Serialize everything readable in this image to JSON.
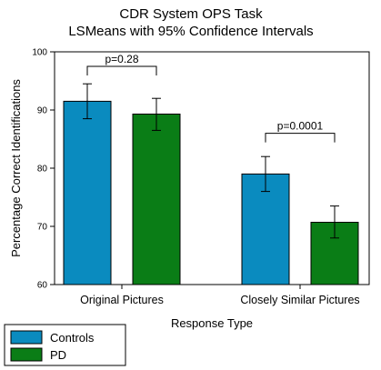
{
  "chart_data": {
    "type": "bar",
    "title": [
      "CDR System OPS Task",
      "LSMeans with 95% Confidence Intervals"
    ],
    "xlabel": "Response Type",
    "ylabel": "Percentage Correct Identifications",
    "ylim": [
      60,
      100
    ],
    "yticks": [
      60,
      70,
      80,
      90,
      100
    ],
    "categories": [
      "Original Pictures",
      "Closely Similar Pictures"
    ],
    "series": [
      {
        "name": "Controls",
        "color": "#0a8bbf",
        "values": [
          91.5,
          79.0
        ],
        "ci_low": [
          88.5,
          76.0
        ],
        "ci_high": [
          94.5,
          82.0
        ]
      },
      {
        "name": "PD",
        "color": "#0a7d16",
        "values": [
          89.3,
          70.7
        ],
        "ci_low": [
          86.5,
          68.0
        ],
        "ci_high": [
          92.0,
          73.5
        ]
      }
    ],
    "annotations": [
      {
        "category": "Original Pictures",
        "text": "p=0.28",
        "y": 97.5
      },
      {
        "category": "Closely Similar Pictures",
        "text": "p=0.0001",
        "y": 86.0
      }
    ],
    "grid": false,
    "legend_position": "bottom-left"
  }
}
